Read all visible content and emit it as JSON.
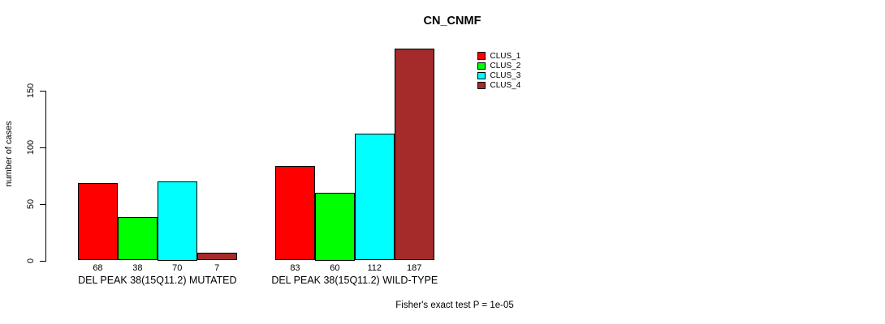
{
  "title": "CN_CNMF",
  "y_axis_label": "number of cases",
  "footer_note": "Fisher's exact test P = 1e-05",
  "chart_data": {
    "type": "bar",
    "title": "CN_CNMF",
    "xlabel": "",
    "ylabel": "number of cases",
    "categories": [
      "DEL PEAK 38(15Q11.2) MUTATED",
      "DEL PEAK 38(15Q11.2) WILD-TYPE"
    ],
    "series": [
      {
        "name": "CLUS_1",
        "color": "#ff0000",
        "values": [
          68,
          83
        ]
      },
      {
        "name": "CLUS_2",
        "color": "#00ff00",
        "values": [
          38,
          60
        ]
      },
      {
        "name": "CLUS_3",
        "color": "#00ffff",
        "values": [
          70,
          112
        ]
      },
      {
        "name": "CLUS_4",
        "color": "#a52a2a",
        "values": [
          7,
          187
        ]
      }
    ],
    "yticks": [
      0,
      50,
      100,
      150
    ],
    "ylim": [
      0,
      190
    ],
    "grid": false,
    "bar_value_labels": true,
    "legend_position": "top-right",
    "annotation": "Fisher's exact test P = 1e-05",
    "bar_border_color": "#000000",
    "background_color": "#ffffff"
  }
}
